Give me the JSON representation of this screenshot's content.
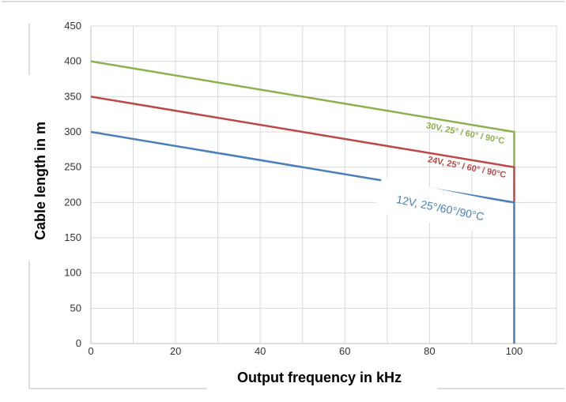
{
  "chart_data": {
    "type": "line",
    "xlabel": "Output frequency in kHz",
    "ylabel": "Cable length in m",
    "xlim": [
      0,
      110
    ],
    "ylim": [
      0,
      450
    ],
    "x_ticks": [
      0,
      20,
      40,
      60,
      80,
      100
    ],
    "y_ticks": [
      0,
      50,
      100,
      150,
      200,
      250,
      300,
      350,
      400,
      450
    ],
    "x_minor_grid_step": 10,
    "y_grid_step": 50,
    "grid": true,
    "series": [
      {
        "name": "30V, 25° / 60° / 90°C",
        "color": "#8db04e",
        "x": [
          0,
          100,
          100
        ],
        "y": [
          400,
          300,
          250
        ]
      },
      {
        "name": "24V, 25° / 60° / 90°C",
        "color": "#bd4745",
        "x": [
          0,
          100,
          100
        ],
        "y": [
          350,
          250,
          200
        ]
      },
      {
        "name": "12V, 25°/60°/90°C",
        "color": "#4a7ebb",
        "x": [
          0,
          100,
          100
        ],
        "y": [
          300,
          200,
          0
        ]
      }
    ]
  }
}
